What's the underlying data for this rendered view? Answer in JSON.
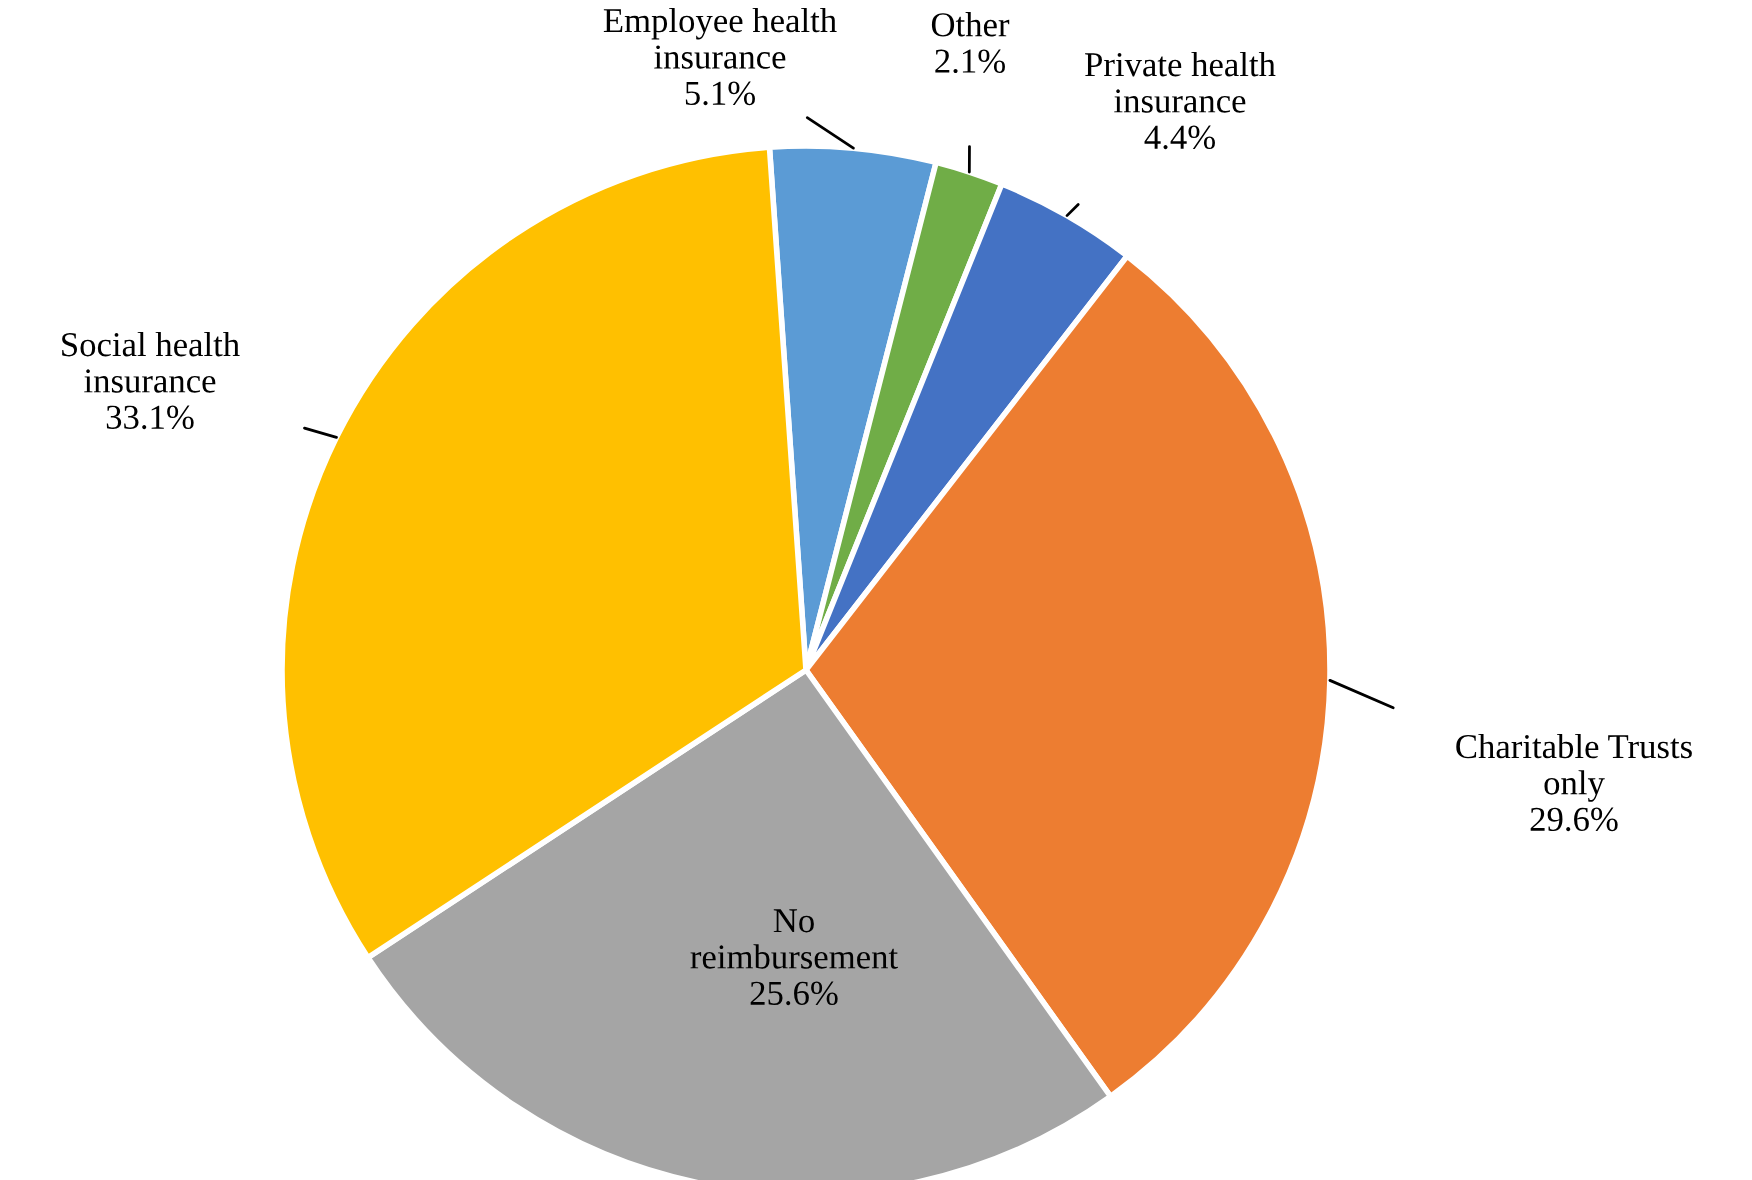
{
  "chart_data": {
    "type": "pie",
    "categories": [
      "Employee health\ninsurance",
      "Other",
      "Private health\ninsurance",
      "Charitable Trusts\nonly",
      "No\nreimbursement",
      "Social health\ninsurance"
    ],
    "values": [
      5.1,
      2.1,
      4.4,
      29.6,
      25.6,
      33.1
    ],
    "colors": [
      "#5b9bd5",
      "#70ad47",
      "#4472c4",
      "#ed7d31",
      "#a5a5a5",
      "#ffc000"
    ],
    "value_labels": [
      "5.1%",
      "2.1%",
      "4.4%",
      "29.6%",
      "25.6%",
      "33.1%"
    ],
    "legend": false
  }
}
